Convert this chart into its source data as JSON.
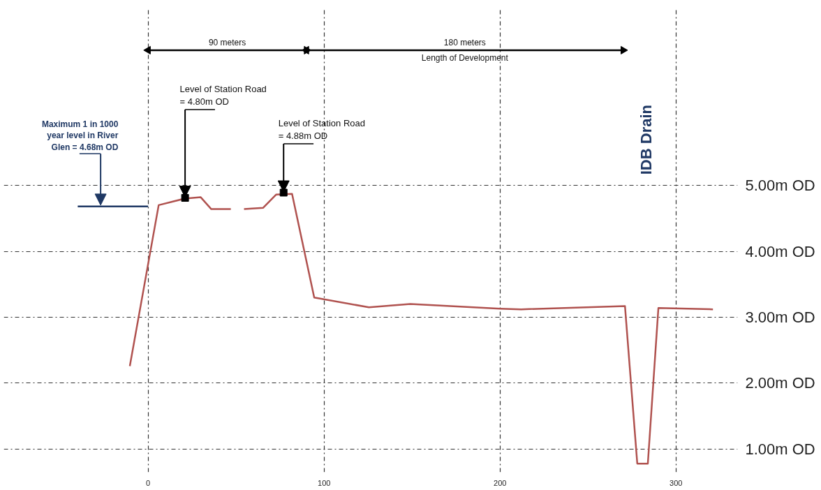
{
  "chart_data": {
    "type": "line",
    "xlim": [
      -82,
      335
    ],
    "ylim": [
      0.65,
      7.7
    ],
    "xticks": [
      0,
      100,
      200,
      300
    ],
    "yticks": [
      {
        "value": 1,
        "label": "1.00m OD"
      },
      {
        "value": 2,
        "label": "2.00m OD"
      },
      {
        "value": 3,
        "label": "3.00m OD"
      },
      {
        "value": 4,
        "label": "4.00m OD"
      },
      {
        "value": 5,
        "label": "5.00m OD"
      }
    ],
    "grid": true,
    "line_style": "solid",
    "series": [
      {
        "color": "#b0524f",
        "x": [
          -10.4,
          6,
          20.8,
          29.9,
          35.9,
          47,
          50,
          54.5,
          65.4,
          72.7,
          81.8,
          94.4,
          125.5,
          149,
          200,
          212,
          271,
          278,
          284,
          290,
          321
        ],
        "values": [
          2.26,
          4.7,
          4.8,
          4.82,
          4.64,
          4.64,
          null,
          4.64,
          4.66,
          4.86,
          4.87,
          3.3,
          3.15,
          3.2,
          3.13,
          3.12,
          3.17,
          0.78,
          0.78,
          3.14,
          3.12
        ]
      },
      {
        "color": "#1f3864",
        "x": [
          -40,
          0
        ],
        "values": [
          4.68,
          4.68
        ]
      },
      {
        "name": "90 meters",
        "color": "#000000",
        "marker": "triangle",
        "x": [
          0,
          90
        ],
        "values": [
          7.05,
          7.05
        ]
      },
      {
        "name": "180 meters\nLength of Development",
        "color": "#000000",
        "marker": "triangle",
        "x": [
          90,
          270
        ],
        "values": [
          7.05,
          7.05
        ]
      }
    ],
    "annotations": [
      {
        "text": "Maximum 1 in 1000\nyear level in River\nGlen = 4.68m OD",
        "x": -27,
        "y": 4.68
      },
      {
        "text": "Level of Station Road\n = 4.80m OD",
        "x": 21,
        "y": 4.8
      },
      {
        "text": "Level of Station Road\n = 4.88m OD",
        "x": 77,
        "y": 4.88
      },
      "IDB Drain"
    ]
  }
}
